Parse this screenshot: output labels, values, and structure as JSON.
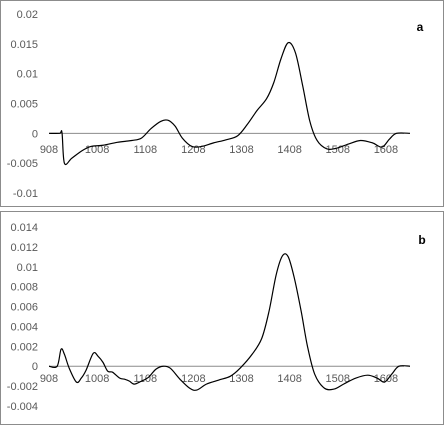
{
  "chart_data": [
    {
      "type": "line",
      "panel_label": "a",
      "title": "",
      "xlabel": "",
      "ylabel": "",
      "x_ticks": [
        "908",
        "1008",
        "1108",
        "1208",
        "1308",
        "1408",
        "1508",
        "1608"
      ],
      "y_ticks": [
        "0.02",
        "0.015",
        "0.01",
        "0.005",
        "0",
        "-0.005",
        "-0.01"
      ],
      "ylim": [
        -0.01,
        0.02
      ],
      "xlim": [
        908,
        1658
      ],
      "grid": false,
      "series": [
        {
          "color": "#000000",
          "points": [
            [
              908,
              0
            ],
            [
              930,
              0
            ],
            [
              935,
              0.0001
            ],
            [
              940,
              -0.005
            ],
            [
              955,
              -0.0042
            ],
            [
              975,
              -0.003
            ],
            [
              995,
              -0.0022
            ],
            [
              1020,
              -0.002
            ],
            [
              1050,
              -0.0015
            ],
            [
              1080,
              -0.0012
            ],
            [
              1100,
              -0.0008
            ],
            [
              1120,
              0.0008
            ],
            [
              1140,
              0.002
            ],
            [
              1155,
              0.0022
            ],
            [
              1170,
              0.0012
            ],
            [
              1185,
              -0.0008
            ],
            [
              1205,
              -0.0022
            ],
            [
              1225,
              -0.0022
            ],
            [
              1250,
              -0.0016
            ],
            [
              1275,
              -0.0011
            ],
            [
              1300,
              -0.0004
            ],
            [
              1320,
              0.0015
            ],
            [
              1340,
              0.0038
            ],
            [
              1360,
              0.0058
            ],
            [
              1375,
              0.0085
            ],
            [
              1390,
              0.0125
            ],
            [
              1405,
              0.0152
            ],
            [
              1420,
              0.0135
            ],
            [
              1435,
              0.008
            ],
            [
              1450,
              0.002
            ],
            [
              1465,
              -0.0012
            ],
            [
              1485,
              -0.0026
            ],
            [
              1505,
              -0.0025
            ],
            [
              1530,
              -0.0018
            ],
            [
              1555,
              -0.0012
            ],
            [
              1580,
              -0.0016
            ],
            [
              1600,
              -0.0023
            ],
            [
              1615,
              -0.001
            ],
            [
              1630,
              0
            ],
            [
              1658,
              0
            ]
          ]
        }
      ]
    },
    {
      "type": "line",
      "panel_label": "b",
      "title": "",
      "xlabel": "",
      "ylabel": "",
      "x_ticks": [
        "908",
        "1008",
        "1108",
        "1208",
        "1308",
        "1408",
        "1508",
        "1608"
      ],
      "y_ticks": [
        "0.014",
        "0.012",
        "0.01",
        "0.008",
        "0.006",
        "0.004",
        "0.002",
        "0",
        "-0.002",
        "-0.004"
      ],
      "ylim": [
        -0.004,
        0.014
      ],
      "xlim": [
        908,
        1658
      ],
      "grid": false,
      "series": [
        {
          "color": "#000000",
          "points": [
            [
              908,
              0
            ],
            [
              925,
              0
            ],
            [
              933,
              0.0017
            ],
            [
              940,
              0.0012
            ],
            [
              950,
              -0.0002
            ],
            [
              965,
              -0.0016
            ],
            [
              975,
              -0.0012
            ],
            [
              985,
              -0.0004
            ],
            [
              1000,
              0.0013
            ],
            [
              1010,
              0.001
            ],
            [
              1020,
              0.0004
            ],
            [
              1030,
              -0.0005
            ],
            [
              1040,
              -0.0006
            ],
            [
              1055,
              -0.0012
            ],
            [
              1065,
              -0.0013
            ],
            [
              1075,
              -0.0015
            ],
            [
              1085,
              -0.0018
            ],
            [
              1100,
              -0.0015
            ],
            [
              1115,
              -0.0011
            ],
            [
              1130,
              -0.0003
            ],
            [
              1145,
              0
            ],
            [
              1160,
              -0.0002
            ],
            [
              1180,
              -0.0013
            ],
            [
              1200,
              -0.0022
            ],
            [
              1215,
              -0.0024
            ],
            [
              1235,
              -0.0018
            ],
            [
              1260,
              -0.0014
            ],
            [
              1285,
              -0.001
            ],
            [
              1305,
              -0.0002
            ],
            [
              1330,
              0.0012
            ],
            [
              1350,
              0.0028
            ],
            [
              1365,
              0.0055
            ],
            [
              1380,
              0.0092
            ],
            [
              1393,
              0.0111
            ],
            [
              1405,
              0.011
            ],
            [
              1418,
              0.0088
            ],
            [
              1432,
              0.0055
            ],
            [
              1445,
              0.002
            ],
            [
              1460,
              -0.0008
            ],
            [
              1480,
              -0.0022
            ],
            [
              1500,
              -0.0023
            ],
            [
              1520,
              -0.0018
            ],
            [
              1545,
              -0.0012
            ],
            [
              1570,
              -0.0009
            ],
            [
              1590,
              -0.0012
            ],
            [
              1605,
              -0.0016
            ],
            [
              1620,
              -0.0008
            ],
            [
              1635,
              0
            ],
            [
              1658,
              0
            ]
          ]
        }
      ]
    }
  ]
}
